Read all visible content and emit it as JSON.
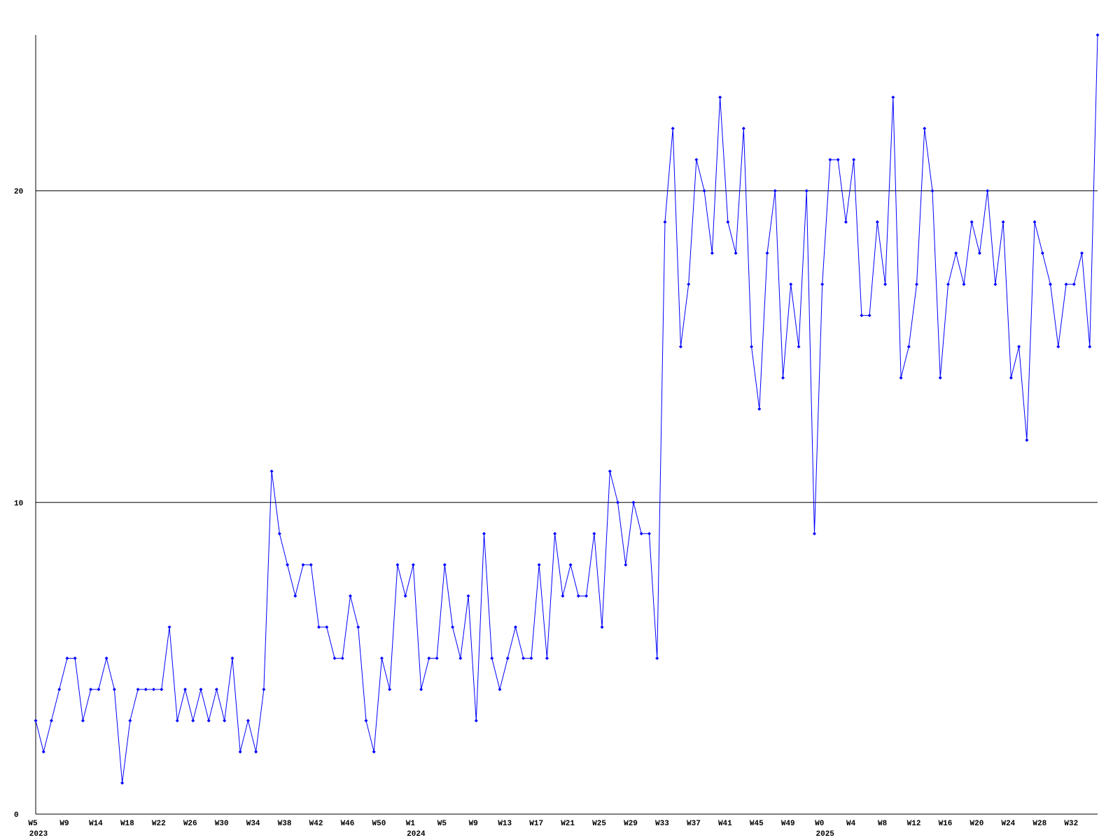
{
  "chart_data": {
    "type": "line",
    "categories": [
      "W5",
      null,
      null,
      null,
      "W9",
      null,
      null,
      null,
      "W14",
      null,
      null,
      null,
      "W18",
      null,
      null,
      null,
      "W22",
      null,
      null,
      null,
      "W26",
      null,
      null,
      null,
      "W30",
      null,
      null,
      null,
      "W34",
      null,
      null,
      null,
      "W38",
      null,
      null,
      null,
      "W42",
      null,
      null,
      null,
      "W46",
      null,
      null,
      null,
      "W50",
      null,
      null,
      null,
      "W1",
      null,
      null,
      null,
      "W5",
      null,
      null,
      null,
      "W9",
      null,
      null,
      null,
      "W13",
      null,
      null,
      null,
      "W17",
      null,
      null,
      null,
      "W21",
      null,
      null,
      null,
      "W25",
      null,
      null,
      null,
      "W29",
      null,
      null,
      null,
      "W33",
      null,
      null,
      null,
      "W37",
      null,
      null,
      null,
      "W41",
      null,
      null,
      null,
      "W45",
      null,
      null,
      null,
      "W49",
      null,
      null,
      null,
      "W0",
      null,
      null,
      null,
      "W4",
      null,
      null,
      null,
      "W8",
      null,
      null,
      null,
      "W12",
      null,
      null,
      null,
      "W16",
      null,
      null,
      null,
      "W20",
      null,
      null,
      null,
      "W24",
      null,
      null,
      null,
      "W28",
      null,
      null,
      null,
      "W32",
      null,
      null,
      null
    ],
    "year_labels": [
      "2023",
      null,
      null,
      null,
      null,
      null,
      null,
      null,
      null,
      null,
      null,
      null,
      null,
      null,
      null,
      null,
      null,
      null,
      null,
      null,
      null,
      null,
      null,
      null,
      null,
      null,
      null,
      null,
      null,
      null,
      null,
      null,
      null,
      null,
      null,
      null,
      null,
      null,
      null,
      null,
      null,
      null,
      null,
      null,
      null,
      null,
      null,
      null,
      "2024",
      null,
      null,
      null,
      null,
      null,
      null,
      null,
      null,
      null,
      null,
      null,
      null,
      null,
      null,
      null,
      null,
      null,
      null,
      null,
      null,
      null,
      null,
      null,
      null,
      null,
      null,
      null,
      null,
      null,
      null,
      null,
      null,
      null,
      null,
      null,
      null,
      null,
      null,
      null,
      null,
      null,
      null,
      null,
      null,
      null,
      null,
      null,
      null,
      null,
      null,
      null,
      "2025",
      null,
      null,
      null,
      null,
      null,
      null,
      null,
      null,
      null,
      null,
      null,
      null,
      null,
      null,
      null,
      null,
      null,
      null,
      null,
      null,
      null,
      null,
      null,
      null,
      null,
      null,
      null,
      null,
      null,
      null,
      null,
      null,
      null,
      null,
      null
    ],
    "series": [
      {
        "color": "#0000ff",
        "values": [
          3,
          2,
          3,
          4,
          5,
          5,
          3,
          4,
          4,
          5,
          4,
          1,
          3,
          4,
          4,
          4,
          4,
          6,
          3,
          4,
          3,
          4,
          3,
          4,
          3,
          5,
          2,
          3,
          2,
          4,
          11,
          9,
          8,
          7,
          8,
          8,
          6,
          6,
          5,
          5,
          7,
          6,
          3,
          2,
          5,
          4,
          8,
          7,
          8,
          4,
          5,
          5,
          8,
          6,
          5,
          7,
          3,
          9,
          5,
          4,
          5,
          6,
          5,
          5,
          8,
          5,
          9,
          7,
          8,
          7,
          7,
          9,
          6,
          11,
          10,
          8,
          10,
          9,
          9,
          5,
          19,
          22,
          15,
          17,
          21,
          20,
          18,
          23,
          19,
          18,
          22,
          15,
          13,
          18,
          20,
          14,
          17,
          15,
          20,
          9,
          17,
          21,
          21,
          19,
          21,
          16,
          16,
          19,
          17,
          23,
          14,
          15,
          17,
          22,
          20,
          14,
          17,
          18,
          17,
          19,
          18,
          20,
          17,
          19,
          14,
          15,
          12,
          19,
          18,
          17,
          15,
          17,
          17,
          18,
          15,
          25
        ]
      }
    ],
    "ylim": [
      0,
      25
    ],
    "yticks": [
      0,
      10,
      20
    ],
    "grid": true
  }
}
